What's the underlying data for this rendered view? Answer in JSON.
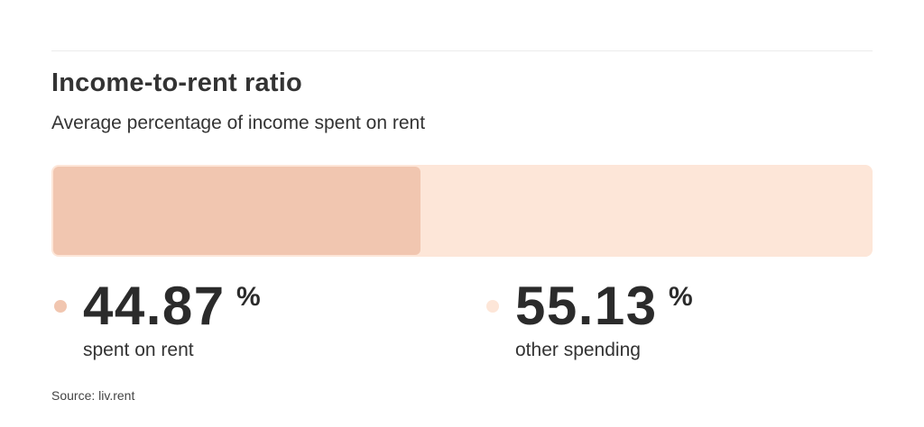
{
  "header": {
    "title": "Income-to-rent ratio",
    "subtitle": "Average percentage of income spent on rent"
  },
  "chart_data": {
    "type": "bar",
    "categories": [
      "spent on rent",
      "other spending"
    ],
    "values": [
      44.87,
      55.13
    ],
    "unit": "%",
    "colors": {
      "rent": "#f1c6b0",
      "other": "#fde6d8"
    }
  },
  "stats": {
    "rent": {
      "value": "44.87",
      "unit": "%",
      "label": "spent on rent"
    },
    "other": {
      "value": "55.13",
      "unit": "%",
      "label": "other spending"
    }
  },
  "footer": {
    "source": "Source: liv.rent"
  }
}
